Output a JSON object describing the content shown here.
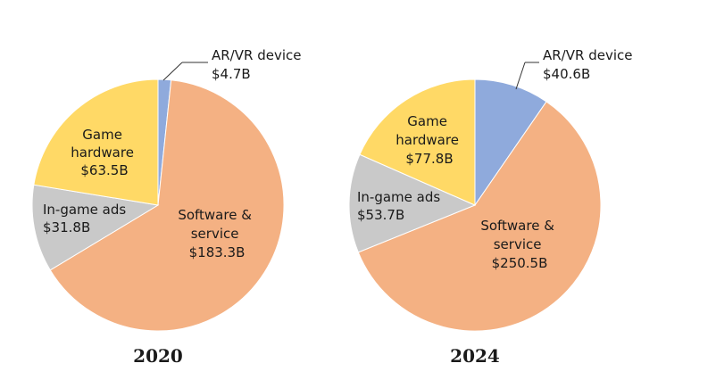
{
  "chart_data": [
    {
      "type": "pie",
      "title": "2020",
      "colors": [
        "#8faadc",
        "#f4b183",
        "#c9c9c9",
        "#ffd966"
      ],
      "slices": [
        {
          "name": "AR/VR device",
          "value": 4.7,
          "label_lines": [
            "AR/VR device",
            "$4.7B"
          ]
        },
        {
          "name": "Software & service",
          "value": 183.3,
          "label_lines": [
            "Software &",
            "service",
            "$183.3B"
          ]
        },
        {
          "name": "In-game ads",
          "value": 31.8,
          "label_lines": [
            "In-game ads",
            "$31.8B"
          ]
        },
        {
          "name": "Game hardware",
          "value": 63.5,
          "label_lines": [
            "Game",
            "hardware",
            "$63.5B"
          ]
        }
      ]
    },
    {
      "type": "pie",
      "title": "2024",
      "colors": [
        "#8faadc",
        "#f4b183",
        "#c9c9c9",
        "#ffd966"
      ],
      "slices": [
        {
          "name": "AR/VR device",
          "value": 40.6,
          "label_lines": [
            "AR/VR device",
            "$40.6B"
          ]
        },
        {
          "name": "Software & service",
          "value": 250.5,
          "label_lines": [
            "Software &",
            "service",
            "$250.5B"
          ]
        },
        {
          "name": "In-game ads",
          "value": 53.7,
          "label_lines": [
            "In-game ads",
            "$53.7B"
          ]
        },
        {
          "name": "Game hardware",
          "value": 77.8,
          "label_lines": [
            "Game",
            "hardware",
            "$77.8B"
          ]
        }
      ]
    }
  ]
}
